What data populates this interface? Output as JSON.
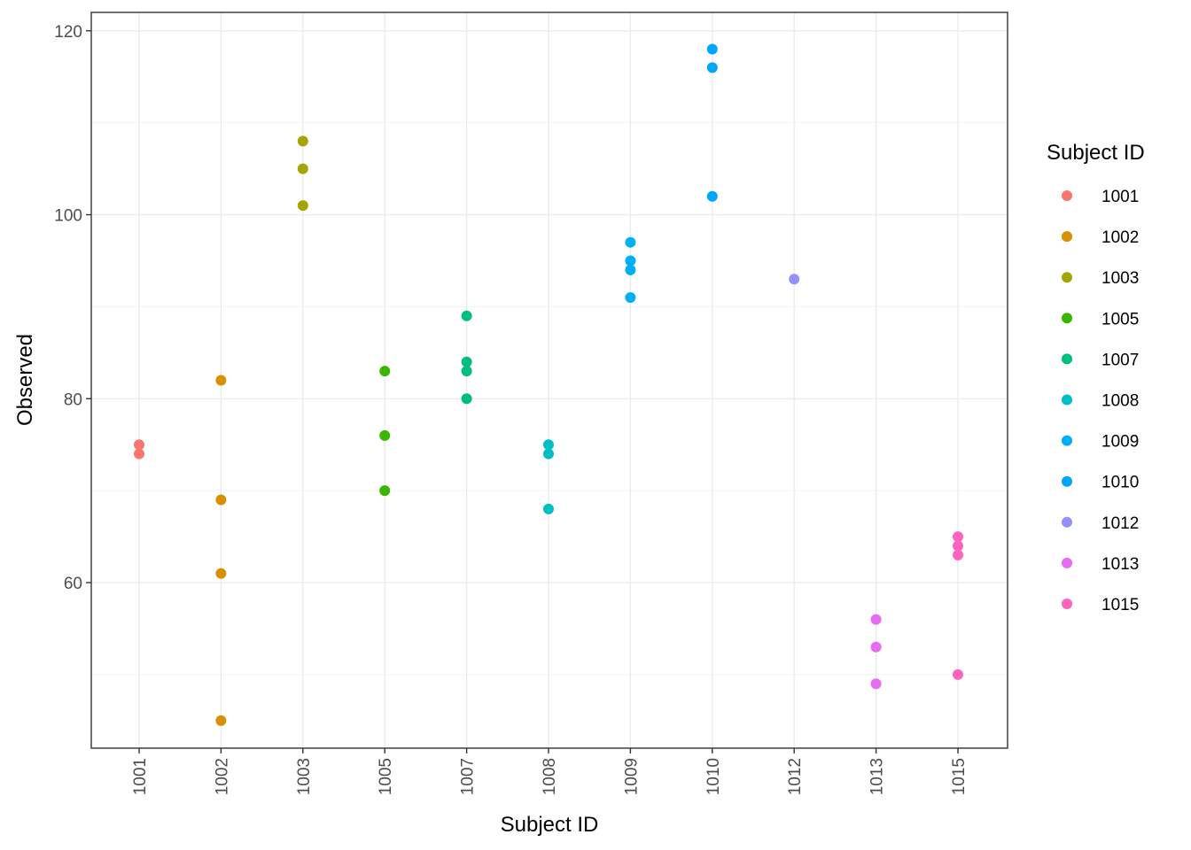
{
  "chart_data": {
    "type": "scatter",
    "title": "",
    "xlabel": "Subject ID",
    "ylabel": "Observed",
    "categories": [
      "1001",
      "1002",
      "1003",
      "1005",
      "1007",
      "1008",
      "1009",
      "1010",
      "1012",
      "1013",
      "1015"
    ],
    "ylim": [
      42,
      122
    ],
    "yticks": [
      60,
      80,
      100,
      120
    ],
    "grid": true,
    "legend": {
      "title": "Subject ID",
      "position": "right"
    },
    "series": [
      {
        "name": "1001",
        "color": "#F8766D",
        "values": [
          75,
          74
        ]
      },
      {
        "name": "1002",
        "color": "#D89000",
        "values": [
          82,
          69,
          61,
          45
        ]
      },
      {
        "name": "1003",
        "color": "#A3A500",
        "values": [
          108,
          105,
          101
        ]
      },
      {
        "name": "1005",
        "color": "#39B600",
        "values": [
          83,
          76,
          70
        ]
      },
      {
        "name": "1007",
        "color": "#00BF7D",
        "values": [
          89,
          84,
          83,
          80
        ]
      },
      {
        "name": "1008",
        "color": "#00BFC4",
        "values": [
          75,
          74,
          68
        ]
      },
      {
        "name": "1009",
        "color": "#00B0F6",
        "values": [
          97,
          95,
          94,
          91
        ]
      },
      {
        "name": "1010",
        "color": "#00A5FF",
        "values": [
          118,
          116,
          102
        ]
      },
      {
        "name": "1012",
        "color": "#9590FF",
        "values": [
          93
        ]
      },
      {
        "name": "1013",
        "color": "#E76BF3",
        "values": [
          56,
          53,
          49
        ]
      },
      {
        "name": "1015",
        "color": "#FF62BC",
        "values": [
          65,
          64,
          63,
          50
        ]
      }
    ]
  }
}
